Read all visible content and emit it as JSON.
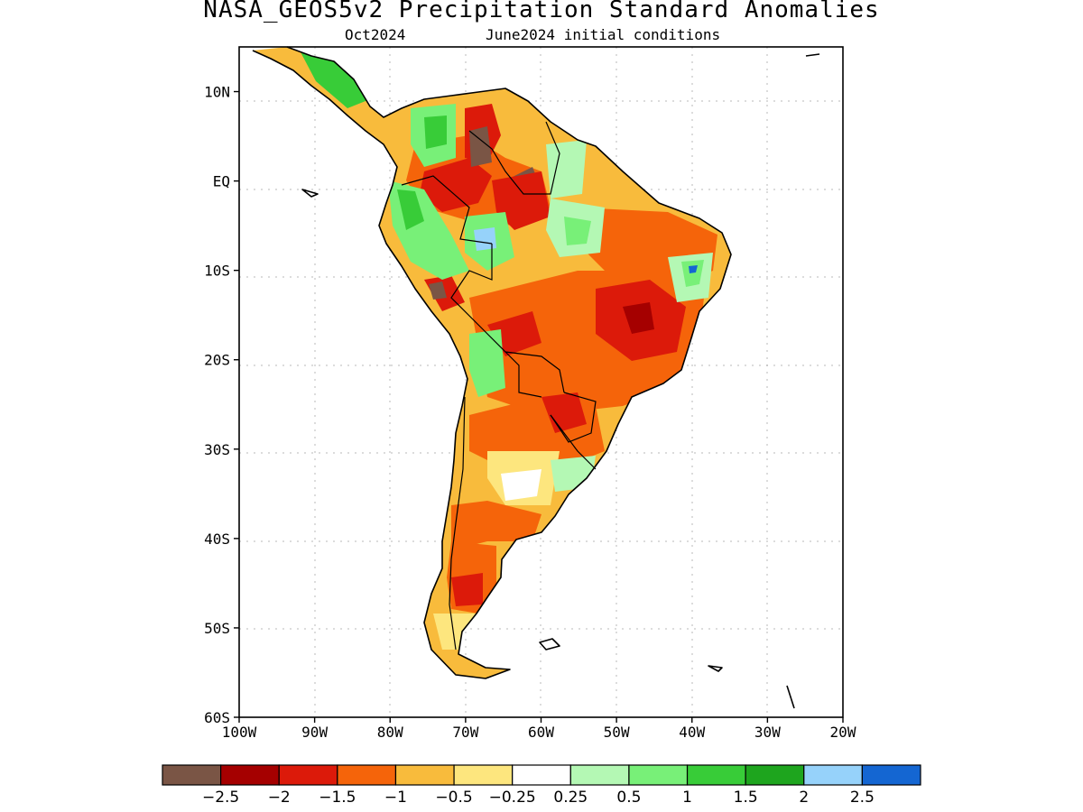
{
  "title": "NASA_GEOS5v2 Precipitation Standard Anomalies",
  "subtitle_left": "Oct2024",
  "subtitle_right": "June2024 initial conditions",
  "map": {
    "lon_range": [
      -100,
      -20
    ],
    "lat_range": [
      -60,
      15
    ],
    "x_ticks": [
      "100W",
      "90W",
      "80W",
      "70W",
      "60W",
      "50W",
      "40W",
      "30W",
      "20W"
    ],
    "y_ticks": [
      "10N",
      "EQ",
      "10S",
      "20S",
      "30S",
      "40S",
      "50S",
      "60S"
    ],
    "y_tick_lats": [
      10,
      0,
      -10,
      -20,
      -30,
      -40,
      -50,
      -60
    ],
    "grid": "dotted",
    "region": "South America"
  },
  "colorbar": {
    "colors": [
      "#7a5545",
      "#a50000",
      "#dc1a0a",
      "#f5640a",
      "#f8bb3c",
      "#fde67e",
      "#ffffff",
      "#b4f8b4",
      "#78f078",
      "#38cc38",
      "#1ea51e",
      "#96d2fa",
      "#1466d2"
    ],
    "labels": [
      "−2.5",
      "−2",
      "−1.5",
      "−1",
      "−0.5",
      "−0.25",
      "0.25",
      "0.5",
      "1",
      "1.5",
      "2",
      "2.5"
    ]
  }
}
